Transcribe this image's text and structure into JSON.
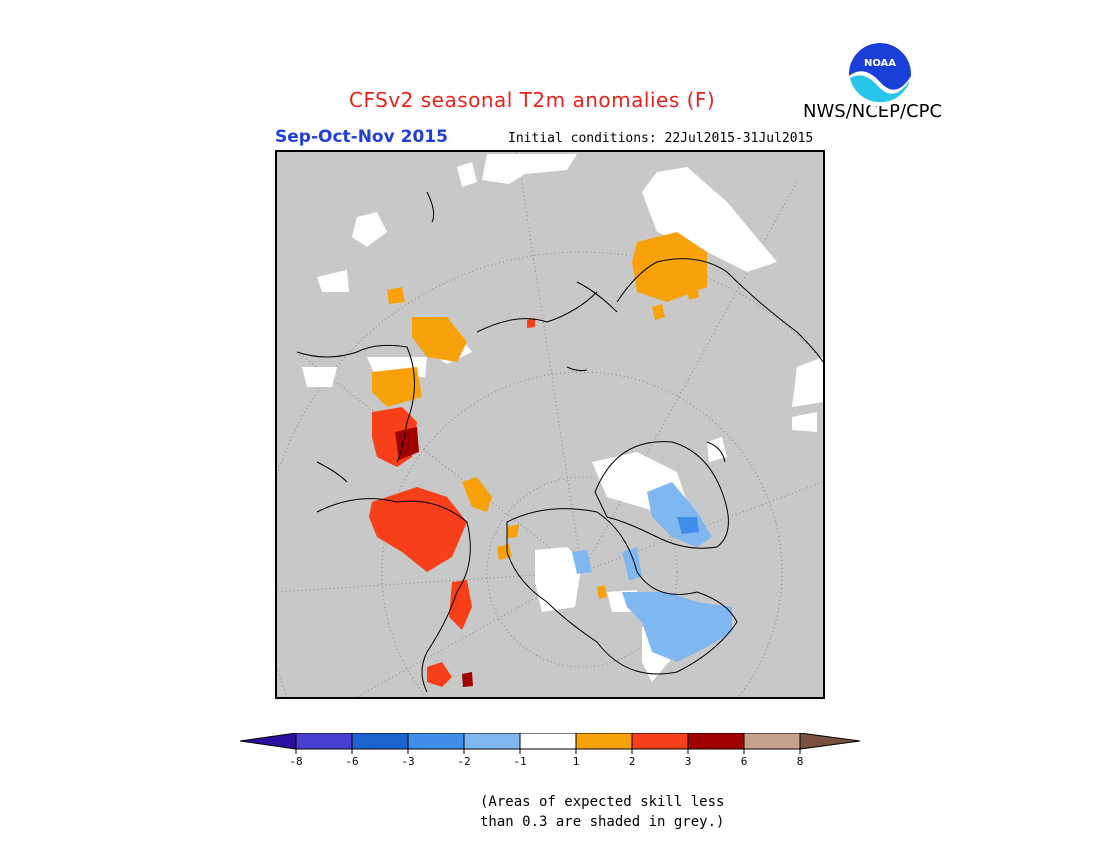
{
  "header": {
    "title": "CFSv2 seasonal T2m anomalies (F)",
    "period": "Sep-Oct-Nov 2015",
    "initial_conditions": "Initial conditions: 22Jul2015-31Jul2015",
    "agency": "NWS/NCEP/CPC",
    "logo_text": "NOAA"
  },
  "colors": {
    "title": "#e8211a",
    "period": "#1f3fd8",
    "map_background": "#c8c8c8",
    "coastline": "#000000"
  },
  "legend": {
    "bins": [
      {
        "color": "#2a0fa0"
      },
      {
        "color": "#4a3fd0"
      },
      {
        "color": "#1f63d0"
      },
      {
        "color": "#3f8fe8"
      },
      {
        "color": "#7fb8f0"
      },
      {
        "color": "#ffffff"
      },
      {
        "color": "#f7a20a"
      },
      {
        "color": "#f7401a"
      },
      {
        "color": "#a00000"
      },
      {
        "color": "#c8a090"
      },
      {
        "color": "#7a5040"
      }
    ],
    "labels": [
      "-8",
      "-6",
      "-3",
      "-2",
      "-1",
      "1",
      "2",
      "3",
      "6",
      "8"
    ]
  },
  "note": {
    "line1": "(Areas of expected skill less",
    "line2": "than 0.3 are shaded in grey.)"
  }
}
